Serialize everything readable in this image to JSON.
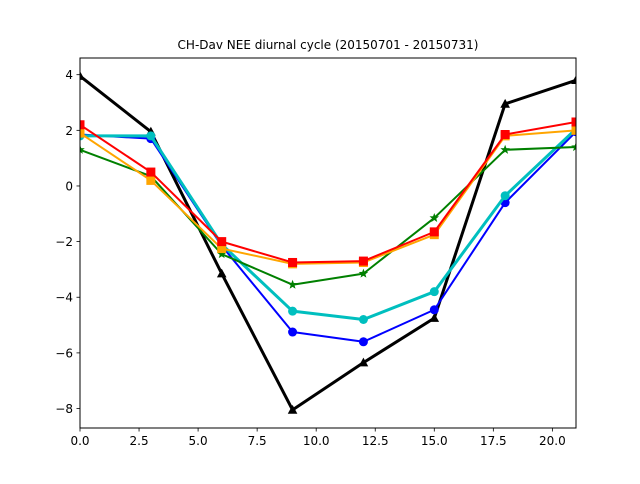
{
  "chart_data": {
    "type": "line",
    "title": "CH-Dav NEE diurnal cycle (20150701 - 20150731)",
    "xlabel": "",
    "ylabel": "",
    "xlim": [
      0,
      21
    ],
    "ylim": [
      -8.7,
      4.6
    ],
    "grid": false,
    "x_ticks": [
      0.0,
      2.5,
      5.0,
      7.5,
      10.0,
      12.5,
      15.0,
      17.5,
      20.0
    ],
    "x_tick_labels": [
      "0.0",
      "2.5",
      "5.0",
      "7.5",
      "10.0",
      "12.5",
      "15.0",
      "17.5",
      "20.0"
    ],
    "y_ticks": [
      -8,
      -6,
      -4,
      -2,
      0,
      2,
      4
    ],
    "y_tick_labels": [
      "−8",
      "−6",
      "−4",
      "−2",
      "0",
      "2",
      "4"
    ],
    "series": [
      {
        "color": "#000000",
        "marker": "triangle",
        "line_weight": "thick",
        "x": [
          0,
          3,
          6,
          9,
          12,
          15,
          18,
          21
        ],
        "y": [
          3.95,
          1.95,
          -3.15,
          -8.05,
          -6.35,
          -4.75,
          2.95,
          3.8
        ]
      },
      {
        "color": "#0000ff",
        "marker": "circle",
        "line_weight": "normal",
        "x": [
          0,
          3,
          6,
          9,
          12,
          15,
          18,
          21
        ],
        "y": [
          1.85,
          1.7,
          -2.15,
          -5.25,
          -5.6,
          -4.45,
          -0.6,
          1.95
        ]
      },
      {
        "color": "#00bfbf",
        "marker": "circle",
        "line_weight": "thick",
        "x": [
          0,
          3,
          6,
          9,
          12,
          15,
          18,
          21
        ],
        "y": [
          1.8,
          1.8,
          -2.1,
          -4.5,
          -4.8,
          -3.8,
          -0.35,
          2.05
        ]
      },
      {
        "color": "#008000",
        "marker": "star",
        "line_weight": "normal",
        "x": [
          0,
          3,
          6,
          9,
          12,
          15,
          18,
          21
        ],
        "y": [
          1.3,
          0.35,
          -2.45,
          -3.55,
          -3.15,
          -1.15,
          1.3,
          1.4
        ]
      },
      {
        "color": "#ffa500",
        "marker": "square",
        "line_weight": "normal",
        "x": [
          0,
          3,
          6,
          9,
          12,
          15,
          18,
          21
        ],
        "y": [
          1.9,
          0.2,
          -2.25,
          -2.8,
          -2.75,
          -1.75,
          1.8,
          2.0
        ]
      },
      {
        "color": "#ff0000",
        "marker": "square",
        "line_weight": "normal",
        "x": [
          0,
          3,
          6,
          9,
          12,
          15,
          18,
          21
        ],
        "y": [
          2.2,
          0.5,
          -2.0,
          -2.75,
          -2.7,
          -1.65,
          1.85,
          2.3
        ]
      }
    ]
  }
}
